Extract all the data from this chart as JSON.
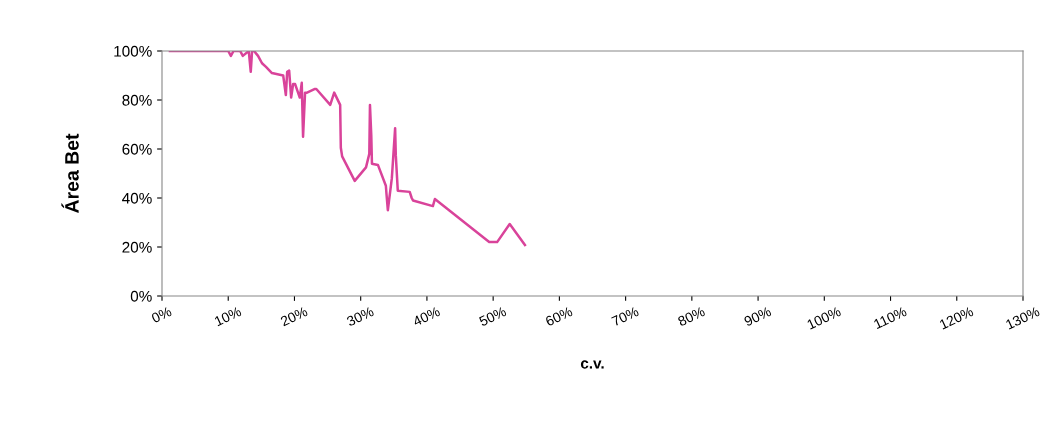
{
  "chart_data": {
    "type": "line",
    "xlabel": "c.v.",
    "ylabel": "Área Bet",
    "color": "#d9439a",
    "x": [
      1.2,
      10.0,
      10.4,
      10.8,
      11.8,
      12.2,
      13.1,
      13.4,
      13.6,
      13.9,
      14.5,
      15.1,
      15.7,
      16.6,
      18.3,
      18.7,
      18.9,
      19.2,
      19.5,
      19.8,
      20.1,
      20.8,
      21.1,
      21.3,
      21.6,
      21.9,
      23.1,
      23.3,
      25.4,
      26.0,
      26.9,
      27.0,
      27.2,
      29.1,
      30.8,
      31.3,
      31.4,
      31.6,
      31.7,
      32.6,
      33.8,
      33.9,
      34.1,
      34.7,
      35.2,
      35.3,
      35.6,
      37.4,
      37.7,
      37.9,
      40.9,
      41.2,
      49.4,
      50.6,
      52.5,
      54.8
    ],
    "values": [
      100,
      100,
      98,
      100,
      100,
      98,
      100,
      91.5,
      100,
      100,
      98,
      95,
      93.5,
      91,
      90,
      82,
      91.5,
      92,
      81,
      86.5,
      86.5,
      81,
      87,
      65,
      83,
      83,
      84.5,
      84.5,
      78,
      83,
      78,
      60.5,
      57,
      47,
      52.5,
      58,
      78,
      65.5,
      54,
      53.5,
      45,
      41.5,
      35,
      48,
      68.5,
      57.5,
      43,
      42.5,
      40,
      39,
      36.7,
      39.6,
      22,
      22,
      29.4,
      20.8
    ],
    "xlim": [
      0,
      130
    ],
    "xticks": [
      {
        "value": 0,
        "label": "0%"
      },
      {
        "value": 10,
        "label": "10%"
      },
      {
        "value": 20,
        "label": "20%"
      },
      {
        "value": 30,
        "label": "30%"
      },
      {
        "value": 40,
        "label": "40%"
      },
      {
        "value": 50,
        "label": "50%"
      },
      {
        "value": 60,
        "label": "60%"
      },
      {
        "value": 70,
        "label": "70%"
      },
      {
        "value": 80,
        "label": "80%"
      },
      {
        "value": 90,
        "label": "90%"
      },
      {
        "value": 100,
        "label": "100%"
      },
      {
        "value": 110,
        "label": "110%"
      },
      {
        "value": 120,
        "label": "120%"
      },
      {
        "value": 130,
        "label": "130%"
      }
    ],
    "ylim": [
      0,
      100
    ],
    "yticks": [
      {
        "value": 0,
        "label": "0%"
      },
      {
        "value": 20,
        "label": "20%"
      },
      {
        "value": 40,
        "label": "40%"
      },
      {
        "value": 60,
        "label": "60%"
      },
      {
        "value": 80,
        "label": "80%"
      },
      {
        "value": 100,
        "label": "100%"
      }
    ],
    "grid": false,
    "legend": false,
    "marker": "none",
    "line_style": "solid"
  }
}
